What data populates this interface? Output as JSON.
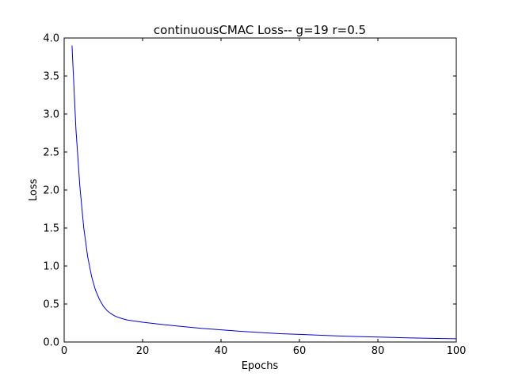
{
  "chart_data": {
    "type": "line",
    "title": "continuousCMAC Loss-- g=19 r=0.5",
    "xlabel": "Epochs",
    "ylabel": "Loss",
    "xlim": [
      0,
      100
    ],
    "ylim": [
      0.0,
      4.0
    ],
    "x_ticks": [
      "0",
      "20",
      "40",
      "60",
      "80",
      "100"
    ],
    "y_ticks": [
      "0.0",
      "0.5",
      "1.0",
      "1.5",
      "2.0",
      "2.5",
      "3.0",
      "3.5",
      "4.0"
    ],
    "grid": false,
    "line_color": "#0000cc",
    "series": [
      {
        "x": [
          2,
          3,
          4,
          5,
          6,
          7,
          8,
          9,
          10,
          11,
          12,
          13,
          14,
          15,
          16,
          18,
          20,
          25,
          30,
          35,
          40,
          45,
          50,
          55,
          60,
          65,
          70,
          75,
          80,
          85,
          90,
          95,
          100
        ],
        "values": [
          3.9,
          2.8,
          2.05,
          1.5,
          1.12,
          0.86,
          0.68,
          0.56,
          0.47,
          0.41,
          0.37,
          0.34,
          0.32,
          0.305,
          0.29,
          0.275,
          0.26,
          0.23,
          0.205,
          0.18,
          0.16,
          0.14,
          0.125,
          0.11,
          0.1,
          0.09,
          0.08,
          0.072,
          0.065,
          0.058,
          0.052,
          0.047,
          0.043
        ]
      }
    ]
  }
}
